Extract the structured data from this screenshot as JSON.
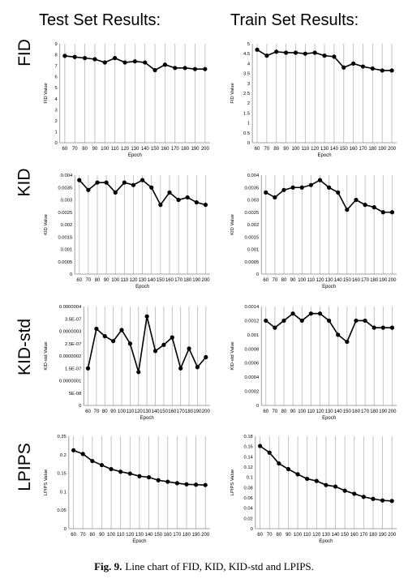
{
  "column_titles": [
    "Test Set Results:",
    "Train Set Results:"
  ],
  "row_titles": [
    "FID",
    "KID",
    "KID-std",
    "LPIPS"
  ],
  "caption": {
    "label": "Fig. 9.",
    "text": "Line chart of FID, KID, KID-std and LPIPS."
  },
  "colors": {
    "line": "#000000",
    "grid": "#b5b5b5",
    "axis": "#888888"
  },
  "chart_data": [
    {
      "type": "line",
      "title": "",
      "xlabel": "Epoch",
      "ylabel": "FID Value",
      "x": [
        60,
        70,
        80,
        90,
        100,
        110,
        120,
        130,
        140,
        150,
        160,
        170,
        180,
        190,
        200
      ],
      "ylim": [
        0,
        9
      ],
      "yticks": [
        "0",
        "1",
        "2",
        "3",
        "4",
        "5",
        "6",
        "7",
        "8",
        "9"
      ],
      "series": [
        {
          "values": [
            7.9,
            7.8,
            7.7,
            7.6,
            7.3,
            7.7,
            7.3,
            7.4,
            7.3,
            6.6,
            7.1,
            6.8,
            6.8,
            6.7,
            6.7
          ]
        }
      ]
    },
    {
      "type": "line",
      "title": "",
      "xlabel": "Epoch",
      "ylabel": "FID Value",
      "x": [
        60,
        70,
        80,
        90,
        100,
        110,
        120,
        130,
        140,
        150,
        160,
        170,
        180,
        190,
        200
      ],
      "ylim": [
        0,
        5
      ],
      "yticks": [
        "0",
        "0.5",
        "1",
        "1.5",
        "2",
        "2.5",
        "3",
        "3.5",
        "4",
        "4.5",
        "5"
      ],
      "series": [
        {
          "values": [
            4.7,
            4.4,
            4.6,
            4.55,
            4.55,
            4.5,
            4.55,
            4.4,
            4.35,
            3.8,
            4.0,
            3.85,
            3.75,
            3.65,
            3.65
          ]
        }
      ]
    },
    {
      "type": "line",
      "title": "",
      "xlabel": "Epoch",
      "ylabel": "KID Value",
      "x": [
        60,
        70,
        80,
        90,
        100,
        110,
        120,
        130,
        140,
        150,
        160,
        170,
        180,
        190,
        200
      ],
      "ylim": [
        0,
        0.004
      ],
      "yticks": [
        "0",
        "0.0005",
        "0.001",
        "0.0015",
        "0.002",
        "0.0025",
        "0.003",
        "0.0035",
        "0.004"
      ],
      "series": [
        {
          "values": [
            0.0038,
            0.0034,
            0.0037,
            0.0037,
            0.0033,
            0.0037,
            0.0036,
            0.0038,
            0.0035,
            0.0028,
            0.0033,
            0.003,
            0.0031,
            0.0029,
            0.0028
          ]
        }
      ]
    },
    {
      "type": "line",
      "title": "",
      "xlabel": "Epoch",
      "ylabel": "KID Value",
      "x": [
        60,
        70,
        80,
        90,
        100,
        110,
        120,
        130,
        140,
        150,
        160,
        170,
        180,
        190,
        200
      ],
      "ylim": [
        0,
        0.004
      ],
      "yticks": [
        "0",
        "0.0005",
        "0.001",
        "0.0015",
        "0.002",
        "0.0025",
        "0.003",
        "0.0035",
        "0.004"
      ],
      "series": [
        {
          "values": [
            0.0033,
            0.0031,
            0.0034,
            0.0035,
            0.0035,
            0.0036,
            0.0038,
            0.0035,
            0.0033,
            0.0026,
            0.003,
            0.0028,
            0.0027,
            0.0025,
            0.0025
          ]
        }
      ]
    },
    {
      "type": "line",
      "title": "",
      "xlabel": "Epoch",
      "ylabel": "KID-std Value",
      "x": [
        60,
        70,
        80,
        90,
        100,
        110,
        120,
        130,
        140,
        150,
        160,
        170,
        180,
        190,
        200
      ],
      "ylim": [
        0,
        4e-07
      ],
      "yticks": [
        "0",
        "5E-08",
        "0.0000001",
        "1.5E-07",
        "0.0000002",
        "2.5E-07",
        "0.0000003",
        "3.5E-07",
        "0.0000004"
      ],
      "series": [
        {
          "values": [
            1.5e-07,
            3.1e-07,
            2.8e-07,
            2.6e-07,
            3.05e-07,
            2.5e-07,
            1.35e-07,
            3.6e-07,
            2.2e-07,
            2.45e-07,
            2.75e-07,
            1.5e-07,
            2.3e-07,
            1.55e-07,
            1.95e-07
          ]
        }
      ]
    },
    {
      "type": "line",
      "title": "",
      "xlabel": "Epoch",
      "ylabel": "KID-std Value",
      "x": [
        60,
        70,
        80,
        90,
        100,
        110,
        120,
        130,
        140,
        150,
        160,
        170,
        180,
        190,
        200
      ],
      "ylim": [
        0,
        0.0014
      ],
      "yticks": [
        "0",
        "0.0002",
        "0.0004",
        "0.0006",
        "0.0008",
        "0.001",
        "0.0012",
        "0.0014"
      ],
      "series": [
        {
          "values": [
            0.0012,
            0.0011,
            0.0012,
            0.0013,
            0.0012,
            0.0013,
            0.0013,
            0.0012,
            0.001,
            0.0009,
            0.0012,
            0.0012,
            0.0011,
            0.0011,
            0.0011
          ]
        }
      ]
    },
    {
      "type": "line",
      "title": "",
      "xlabel": "Epoch",
      "ylabel": "LPIPS Value",
      "x": [
        60,
        70,
        80,
        90,
        100,
        110,
        120,
        130,
        140,
        150,
        160,
        170,
        180,
        190,
        200
      ],
      "ylim": [
        0,
        0.25
      ],
      "yticks": [
        "0",
        "0.05",
        "0.1",
        "0.15",
        "0.2",
        "0.25"
      ],
      "series": [
        {
          "values": [
            0.212,
            0.202,
            0.183,
            0.172,
            0.161,
            0.154,
            0.149,
            0.142,
            0.139,
            0.131,
            0.127,
            0.123,
            0.12,
            0.119,
            0.118
          ]
        }
      ]
    },
    {
      "type": "line",
      "title": "",
      "xlabel": "Epoch",
      "ylabel": "LPIPS Value",
      "x": [
        60,
        70,
        80,
        90,
        100,
        110,
        120,
        130,
        140,
        150,
        160,
        170,
        180,
        190,
        200
      ],
      "ylim": [
        0,
        0.18
      ],
      "yticks": [
        "0",
        "0.02",
        "0.04",
        "0.06",
        "0.08",
        "0.1",
        "0.12",
        "0.14",
        "0.16",
        "0.18"
      ],
      "series": [
        {
          "values": [
            0.161,
            0.148,
            0.127,
            0.116,
            0.106,
            0.097,
            0.093,
            0.085,
            0.082,
            0.074,
            0.068,
            0.062,
            0.058,
            0.055,
            0.054
          ]
        }
      ]
    }
  ]
}
